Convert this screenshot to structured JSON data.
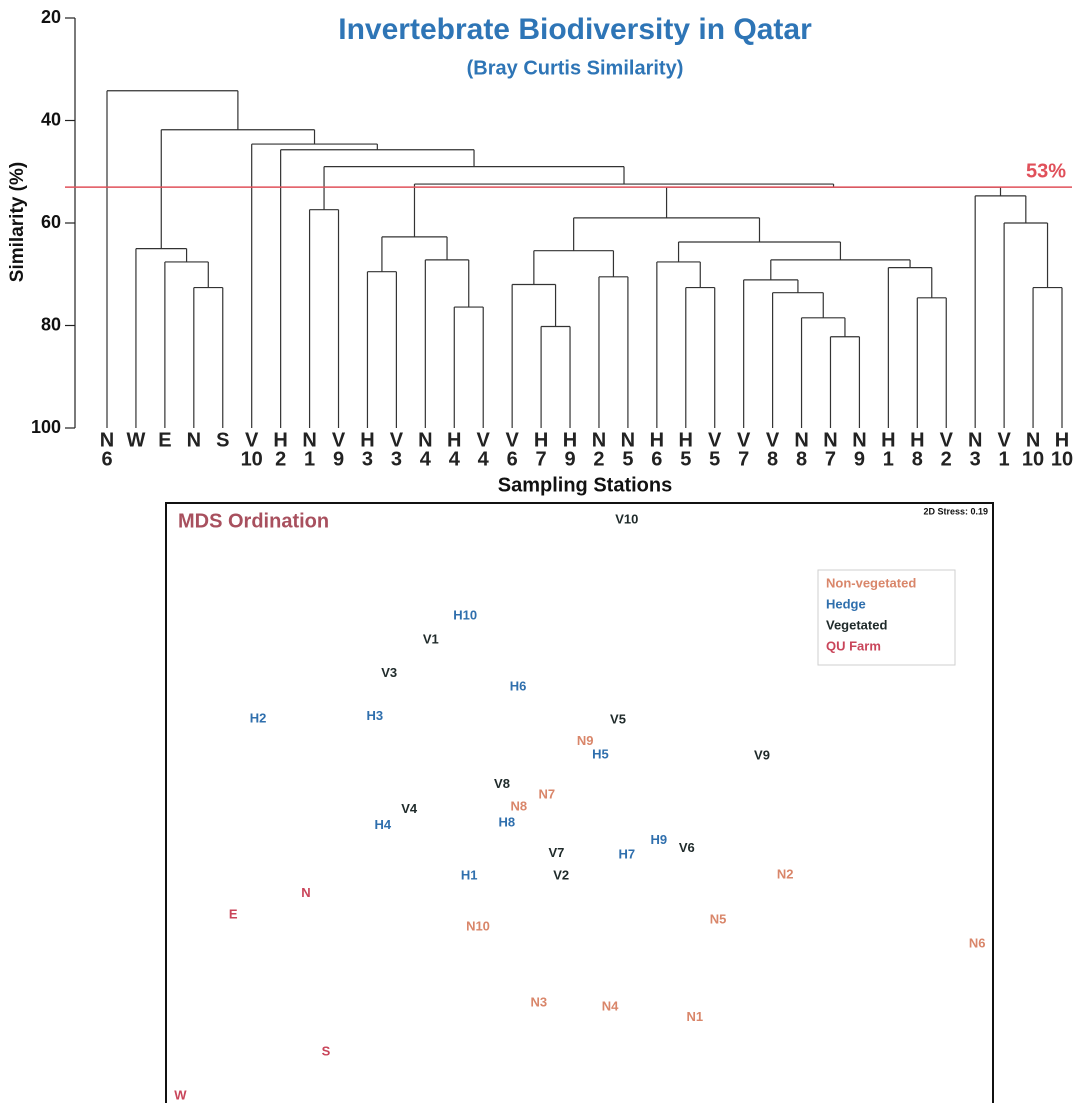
{
  "chart_data": [
    {
      "type": "dendrogram",
      "title": "Invertebrate Biodiversity in Qatar",
      "subtitle": "(Bray Curtis Similarity)",
      "y_label": "Similarity (%)",
      "x_label": "Sampling Stations",
      "title_color": "#2e75b6",
      "color": "#333333",
      "ylim": [
        100,
        20
      ],
      "yticks": [
        20,
        40,
        60,
        80,
        100
      ],
      "categories": [
        [
          "N",
          "6"
        ],
        [
          "W"
        ],
        [
          "E"
        ],
        [
          "N"
        ],
        [
          "S"
        ],
        [
          "V",
          "10"
        ],
        [
          "H",
          "2"
        ],
        [
          "N",
          "1"
        ],
        [
          "V",
          "9"
        ],
        [
          "H",
          "3"
        ],
        [
          "V",
          "3"
        ],
        [
          "N",
          "4"
        ],
        [
          "H",
          "4"
        ],
        [
          "V",
          "4"
        ],
        [
          "V",
          "6"
        ],
        [
          "H",
          "7"
        ],
        [
          "H",
          "9"
        ],
        [
          "N",
          "2"
        ],
        [
          "N",
          "5"
        ],
        [
          "H",
          "6"
        ],
        [
          "H",
          "5"
        ],
        [
          "V",
          "5"
        ],
        [
          "V",
          "7"
        ],
        [
          "V",
          "8"
        ],
        [
          "N",
          "8"
        ],
        [
          "N",
          "7"
        ],
        [
          "N",
          "9"
        ],
        [
          "H",
          "1"
        ],
        [
          "H",
          "8"
        ],
        [
          "V",
          "2"
        ],
        [
          "N",
          "3"
        ],
        [
          "V",
          "1"
        ],
        [
          "N",
          "10"
        ],
        [
          "H",
          "10"
        ]
      ],
      "merges": [
        {
          "nodes": [
            3,
            4
          ],
          "similarity": 72.6
        },
        {
          "nodes": [
            2,
            34
          ],
          "similarity": 67.6
        },
        {
          "nodes": [
            1,
            35
          ],
          "similarity": 65.0
        },
        {
          "nodes": [
            7,
            8
          ],
          "similarity": 57.4
        },
        {
          "nodes": [
            9,
            10
          ],
          "similarity": 69.5
        },
        {
          "nodes": [
            12,
            13
          ],
          "similarity": 76.4
        },
        {
          "nodes": [
            11,
            39
          ],
          "similarity": 67.2
        },
        {
          "nodes": [
            38,
            40
          ],
          "similarity": 62.7
        },
        {
          "nodes": [
            15,
            16
          ],
          "similarity": 80.2
        },
        {
          "nodes": [
            14,
            42
          ],
          "similarity": 72.0
        },
        {
          "nodes": [
            17,
            18
          ],
          "similarity": 70.5
        },
        {
          "nodes": [
            43,
            44
          ],
          "similarity": 65.4
        },
        {
          "nodes": [
            20,
            21
          ],
          "similarity": 72.6
        },
        {
          "nodes": [
            19,
            46
          ],
          "similarity": 67.6
        },
        {
          "nodes": [
            25,
            26
          ],
          "similarity": 82.2
        },
        {
          "nodes": [
            24,
            48
          ],
          "similarity": 78.5
        },
        {
          "nodes": [
            23,
            49
          ],
          "similarity": 73.6
        },
        {
          "nodes": [
            22,
            50
          ],
          "similarity": 71.1
        },
        {
          "nodes": [
            28,
            29
          ],
          "similarity": 74.6
        },
        {
          "nodes": [
            27,
            52
          ],
          "similarity": 68.7
        },
        {
          "nodes": [
            51,
            53
          ],
          "similarity": 67.2
        },
        {
          "nodes": [
            47,
            54
          ],
          "similarity": 63.7
        },
        {
          "nodes": [
            45,
            55
          ],
          "similarity": 59.0
        },
        {
          "nodes": [
            32,
            33
          ],
          "similarity": 72.6
        },
        {
          "nodes": [
            31,
            57
          ],
          "similarity": 60.0
        },
        {
          "nodes": [
            30,
            58
          ],
          "similarity": 54.7
        },
        {
          "nodes": [
            56,
            59
          ],
          "similarity": 53.0
        },
        {
          "nodes": [
            41,
            60
          ],
          "similarity": 52.4
        },
        {
          "nodes": [
            37,
            61
          ],
          "similarity": 49.0
        },
        {
          "nodes": [
            6,
            62
          ],
          "similarity": 45.7
        },
        {
          "nodes": [
            5,
            63
          ],
          "similarity": 44.6
        },
        {
          "nodes": [
            36,
            64
          ],
          "similarity": 41.8
        },
        {
          "nodes": [
            0,
            65
          ],
          "similarity": 34.2
        }
      ],
      "cut": {
        "value": 53,
        "label": "53%",
        "color": "#e0505a"
      }
    },
    {
      "type": "scatter",
      "title": "MDS Ordination",
      "title_color": "#a8505e",
      "annotation": "2D Stress: 0.19",
      "series": [
        {
          "name": "Non-vegetated",
          "color": "#d9866a",
          "labels": [
            "N9",
            "N8",
            "N7",
            "N10",
            "N5",
            "N2",
            "N6",
            "N3",
            "N4",
            "N1"
          ],
          "x": [
            51.9,
            43.6,
            47.1,
            38.5,
            68.5,
            76.9,
            100.9,
            46.1,
            55.0,
            65.6
          ],
          "y": [
            44.8,
            36.6,
            38.1,
            21.6,
            22.5,
            28.1,
            19.5,
            12.1,
            11.6,
            10.3
          ]
        },
        {
          "name": "Hedge",
          "color": "#2f6fad",
          "labels": [
            "H10",
            "H6",
            "H2",
            "H3",
            "H5",
            "H8",
            "H4",
            "H1",
            "H7",
            "H9"
          ],
          "x": [
            36.9,
            43.5,
            11.0,
            25.6,
            53.8,
            42.1,
            26.6,
            37.4,
            57.1,
            61.1
          ],
          "y": [
            60.5,
            51.6,
            47.6,
            47.9,
            43.1,
            34.6,
            34.3,
            28.0,
            30.6,
            32.4
          ]
        },
        {
          "name": "Vegetated",
          "color": "#1f2a2a",
          "labels": [
            "V10",
            "V1",
            "V3",
            "V5",
            "V9",
            "V8",
            "V4",
            "V7",
            "V2",
            "V6"
          ],
          "x": [
            57.1,
            32.6,
            27.4,
            56.0,
            74.0,
            41.5,
            29.9,
            48.3,
            48.9,
            64.6
          ],
          "y": [
            72.5,
            57.5,
            53.3,
            47.5,
            43.0,
            39.4,
            36.3,
            30.8,
            28.0,
            31.4
          ]
        },
        {
          "name": "QU Farm",
          "color": "#c9455a",
          "labels": [
            "N",
            "E",
            "S",
            "W"
          ],
          "x": [
            17.0,
            7.9,
            19.5,
            1.3
          ],
          "y": [
            25.8,
            23.1,
            6.0,
            0.5
          ]
        }
      ]
    }
  ]
}
